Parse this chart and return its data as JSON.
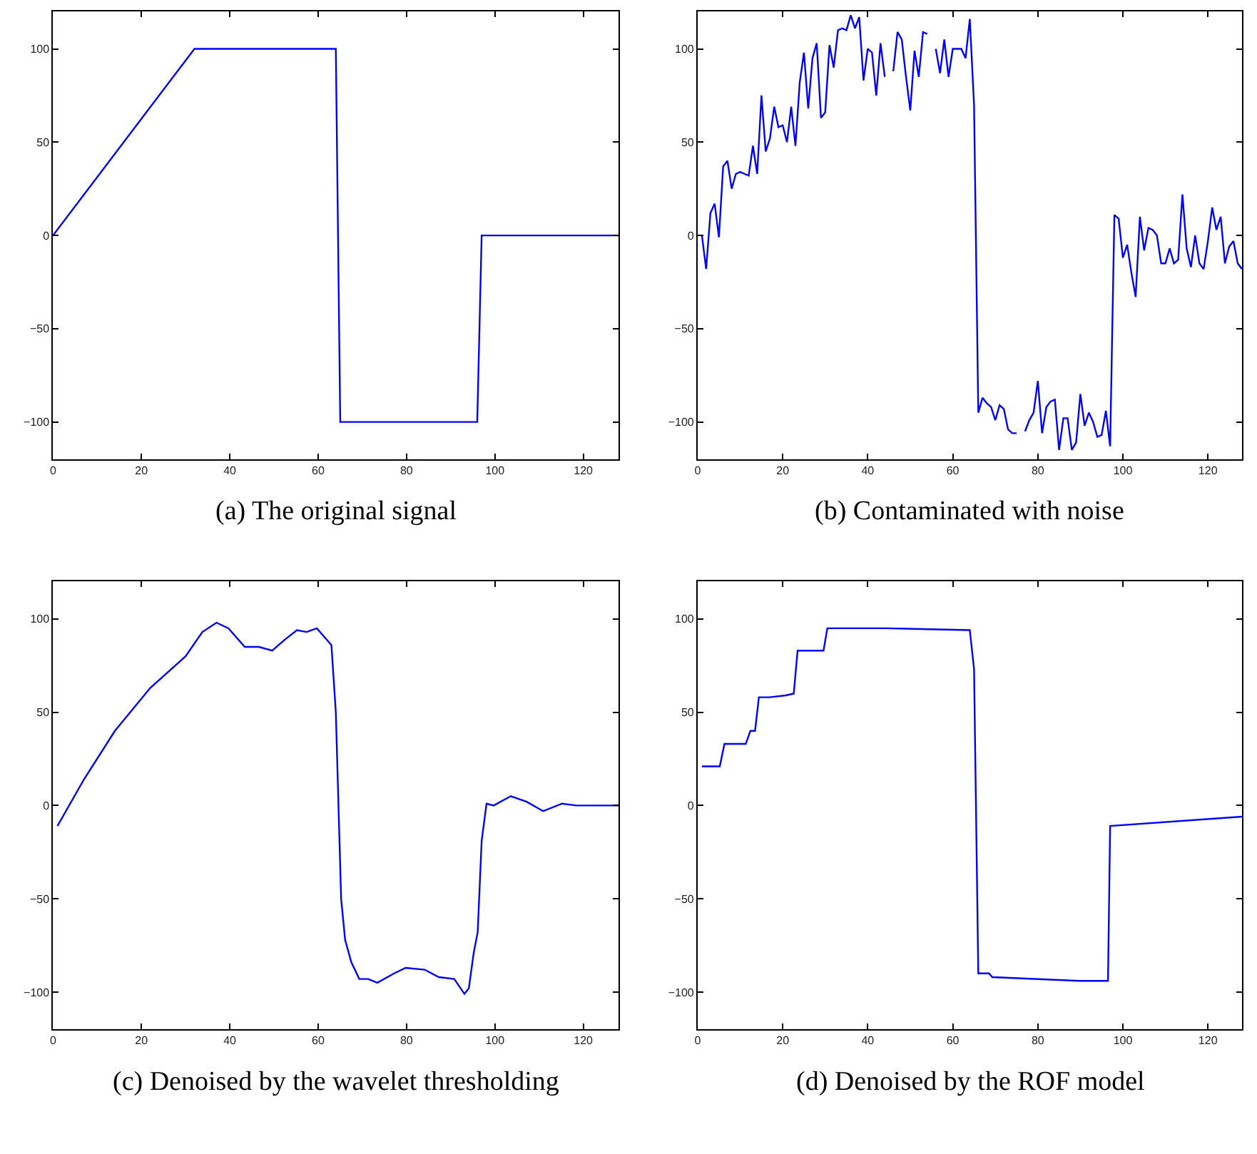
{
  "chart_data": [
    {
      "type": "line",
      "title": "(a) The original signal",
      "x": [
        0,
        32,
        64,
        65,
        96,
        97,
        128
      ],
      "values": [
        0,
        100,
        100,
        -100,
        -100,
        0,
        0
      ],
      "color": "#0000ff",
      "xlim": [
        0,
        128
      ],
      "ylim": [
        -120,
        120
      ],
      "xticks": [
        0,
        20,
        40,
        60,
        80,
        100,
        120
      ],
      "yticks": [
        -100,
        -50,
        0,
        50,
        100
      ]
    },
    {
      "type": "line",
      "title": "(b) Contaminated with noise",
      "x": [
        1,
        2,
        3,
        4,
        5,
        6,
        7,
        8,
        9,
        10,
        11,
        12,
        13,
        14,
        15,
        16,
        17,
        18,
        19,
        20,
        21,
        22,
        23,
        24,
        25,
        26,
        27,
        28,
        29,
        30,
        31,
        32,
        33,
        34,
        35,
        36,
        37,
        38,
        39,
        40,
        41,
        42,
        43,
        44,
        45,
        46,
        47,
        48,
        49,
        50,
        51,
        52,
        53,
        54,
        55,
        56,
        57,
        58,
        59,
        60,
        61,
        62,
        63,
        64,
        65,
        66,
        67,
        68,
        69,
        70,
        71,
        72,
        73,
        74,
        75,
        76,
        77,
        78,
        79,
        80,
        81,
        82,
        83,
        84,
        85,
        86,
        87,
        88,
        89,
        90,
        91,
        92,
        93,
        94,
        95,
        96,
        97,
        98,
        99,
        100,
        101,
        102,
        103,
        104,
        105,
        106,
        107,
        108,
        109,
        110,
        111,
        112,
        113,
        114,
        115,
        116,
        117,
        118,
        119,
        120,
        121,
        122,
        123,
        124,
        125,
        126,
        127,
        128
      ],
      "values": [
        0,
        -18,
        12,
        17,
        -1,
        37,
        40,
        25,
        33,
        34,
        33,
        32,
        48,
        33,
        75,
        45,
        52,
        69,
        58,
        59,
        50,
        69,
        48,
        82,
        98,
        68,
        95,
        103,
        63,
        66,
        102,
        90,
        110,
        111,
        110,
        118,
        111,
        117,
        83,
        100,
        98,
        75,
        103,
        85,
        null,
        88,
        109,
        105,
        85,
        67,
        99,
        85,
        109,
        108,
        null,
        100,
        87,
        105,
        85,
        100,
        100,
        100,
        95,
        116,
        70,
        -95,
        -87,
        -90,
        -92,
        -99,
        -91,
        -93,
        -104,
        -106,
        -106,
        null,
        -105,
        -99,
        -95,
        -78,
        -106,
        -92,
        -89,
        -88,
        -115,
        -98,
        -98,
        -115,
        -111,
        -85,
        -102,
        -95,
        -100,
        -108,
        -107,
        -94,
        -113,
        11,
        9,
        -12,
        -5,
        -20,
        -33,
        10,
        -8,
        4,
        3,
        0,
        -15,
        -15,
        -7,
        -15,
        -13,
        22,
        -7,
        -17,
        0,
        -15,
        -18,
        -3,
        15,
        3,
        10,
        -15,
        -6,
        -3,
        -15,
        -18
      ],
      "color": "#0000ff",
      "xlim": [
        0,
        128
      ],
      "ylim": [
        -120,
        120
      ],
      "xticks": [
        0,
        20,
        40,
        60,
        80,
        100,
        120
      ],
      "yticks": [
        -100,
        -50,
        0,
        50,
        100
      ]
    },
    {
      "type": "line",
      "title": "(c) Denoised by the wavelet thresholding",
      "x": [
        1,
        7,
        14,
        22,
        30,
        33.8,
        37,
        39.7,
        43.4,
        46.6,
        49.6,
        52.5,
        55.2,
        57.4,
        59.7,
        63,
        64,
        65.2,
        66.1,
        67.5,
        69.3,
        71.3,
        73.4,
        77.2,
        79.8,
        84.1,
        87.3,
        90.8,
        93.1,
        94.1,
        95.2,
        96.1,
        97,
        98.1,
        99.7,
        103.6,
        107.2,
        110.9,
        115.2,
        118.4,
        128
      ],
      "values": [
        -11,
        14,
        40,
        63,
        80,
        93,
        98,
        95,
        85,
        85,
        83,
        89,
        94,
        93,
        95,
        86,
        50,
        -50,
        -72,
        -84,
        -93,
        -93,
        -95,
        -90,
        -87,
        -88,
        -92,
        -93,
        -101,
        -98,
        -79,
        -68,
        -19,
        1,
        0,
        5,
        2,
        -3,
        1,
        0,
        0
      ],
      "color": "#0000ff",
      "xlim": [
        0,
        128
      ],
      "ylim": [
        -120,
        120
      ],
      "xticks": [
        0,
        20,
        40,
        60,
        80,
        100,
        120
      ],
      "yticks": [
        -100,
        -50,
        0,
        50,
        100
      ]
    },
    {
      "type": "line",
      "title": "(d) Denoised by the ROF model",
      "x": [
        1,
        5.2,
        6.3,
        11.3,
        12.4,
        13.5,
        14.4,
        16.9,
        20.7,
        22.6,
        23.5,
        29.6,
        30.5,
        44,
        64,
        65,
        66,
        68.5,
        69.3,
        89.7,
        96.5,
        97,
        128
      ],
      "values": [
        21,
        21,
        33,
        33,
        40,
        40,
        58,
        58,
        59,
        60,
        83,
        83,
        95,
        95,
        94,
        73,
        -90,
        -90,
        -92,
        -94,
        -94,
        -11,
        -6
      ],
      "color": "#0000ff",
      "xlim": [
        0,
        128
      ],
      "ylim": [
        -120,
        120
      ],
      "xticks": [
        0,
        20,
        40,
        60,
        80,
        100,
        120
      ],
      "yticks": [
        -100,
        -50,
        0,
        50,
        100
      ]
    }
  ]
}
